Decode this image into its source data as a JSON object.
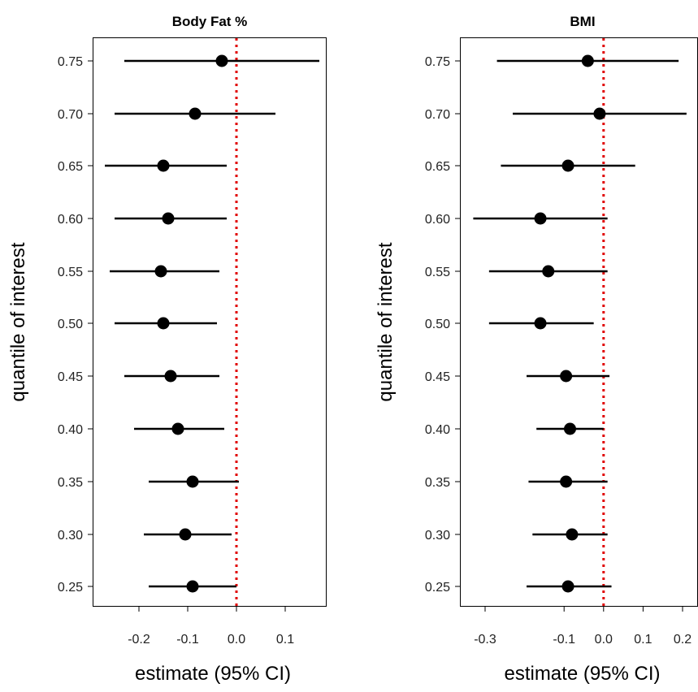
{
  "chart_data": [
    {
      "type": "forest",
      "title": "Body Fat %",
      "xlabel": "estimate (95% CI)",
      "ylabel": "quantile of interest",
      "xlim": [
        -0.3,
        0.18
      ],
      "x_ticks": [
        -0.2,
        -0.1,
        0.0,
        0.1
      ],
      "x_tick_labels": [
        "-0.2",
        "-0.1",
        "0.0",
        "0.1"
      ],
      "reference_line": {
        "x": 0.0,
        "color": "#e00000",
        "style": "dotted"
      },
      "y_tick_labels": [
        "0.75",
        "0.70",
        "0.65",
        "0.60",
        "0.55",
        "0.50",
        "0.45",
        "0.40",
        "0.35",
        "0.30",
        "0.25"
      ],
      "rows": [
        {
          "quantile": 0.75,
          "estimate": -0.03,
          "lower": -0.23,
          "upper": 0.17
        },
        {
          "quantile": 0.7,
          "estimate": -0.085,
          "lower": -0.25,
          "upper": 0.08
        },
        {
          "quantile": 0.65,
          "estimate": -0.15,
          "lower": -0.27,
          "upper": -0.02
        },
        {
          "quantile": 0.6,
          "estimate": -0.14,
          "lower": -0.25,
          "upper": -0.02
        },
        {
          "quantile": 0.55,
          "estimate": -0.155,
          "lower": -0.26,
          "upper": -0.035
        },
        {
          "quantile": 0.5,
          "estimate": -0.15,
          "lower": -0.25,
          "upper": -0.04
        },
        {
          "quantile": 0.45,
          "estimate": -0.135,
          "lower": -0.23,
          "upper": -0.035
        },
        {
          "quantile": 0.4,
          "estimate": -0.12,
          "lower": -0.21,
          "upper": -0.025
        },
        {
          "quantile": 0.35,
          "estimate": -0.09,
          "lower": -0.18,
          "upper": 0.005
        },
        {
          "quantile": 0.3,
          "estimate": -0.105,
          "lower": -0.19,
          "upper": -0.01
        },
        {
          "quantile": 0.25,
          "estimate": -0.09,
          "lower": -0.18,
          "upper": 0.0
        }
      ]
    },
    {
      "type": "forest",
      "title": "BMI",
      "xlabel": "estimate (95% CI)",
      "ylabel": "quantile of interest",
      "xlim": [
        -0.38,
        0.22
      ],
      "x_ticks": [
        -0.3,
        -0.1,
        0.0,
        0.1,
        0.2
      ],
      "x_tick_labels": [
        "-0.3",
        "-0.1",
        "0.0",
        "0.1",
        "0.2"
      ],
      "reference_line": {
        "x": 0.0,
        "color": "#e00000",
        "style": "dotted"
      },
      "y_tick_labels": [
        "0.75",
        "0.70",
        "0.65",
        "0.60",
        "0.55",
        "0.50",
        "0.45",
        "0.40",
        "0.35",
        "0.30",
        "0.25"
      ],
      "rows": [
        {
          "quantile": 0.75,
          "estimate": -0.04,
          "lower": -0.27,
          "upper": 0.19
        },
        {
          "quantile": 0.7,
          "estimate": -0.01,
          "lower": -0.23,
          "upper": 0.21
        },
        {
          "quantile": 0.65,
          "estimate": -0.09,
          "lower": -0.26,
          "upper": 0.08
        },
        {
          "quantile": 0.6,
          "estimate": -0.16,
          "lower": -0.33,
          "upper": 0.01
        },
        {
          "quantile": 0.55,
          "estimate": -0.14,
          "lower": -0.29,
          "upper": 0.01
        },
        {
          "quantile": 0.5,
          "estimate": -0.16,
          "lower": -0.29,
          "upper": -0.025
        },
        {
          "quantile": 0.45,
          "estimate": -0.095,
          "lower": -0.195,
          "upper": 0.015
        },
        {
          "quantile": 0.4,
          "estimate": -0.085,
          "lower": -0.17,
          "upper": 0.0
        },
        {
          "quantile": 0.35,
          "estimate": -0.095,
          "lower": -0.19,
          "upper": 0.01
        },
        {
          "quantile": 0.3,
          "estimate": -0.08,
          "lower": -0.18,
          "upper": 0.01
        },
        {
          "quantile": 0.25,
          "estimate": -0.09,
          "lower": -0.195,
          "upper": 0.02
        }
      ]
    }
  ]
}
